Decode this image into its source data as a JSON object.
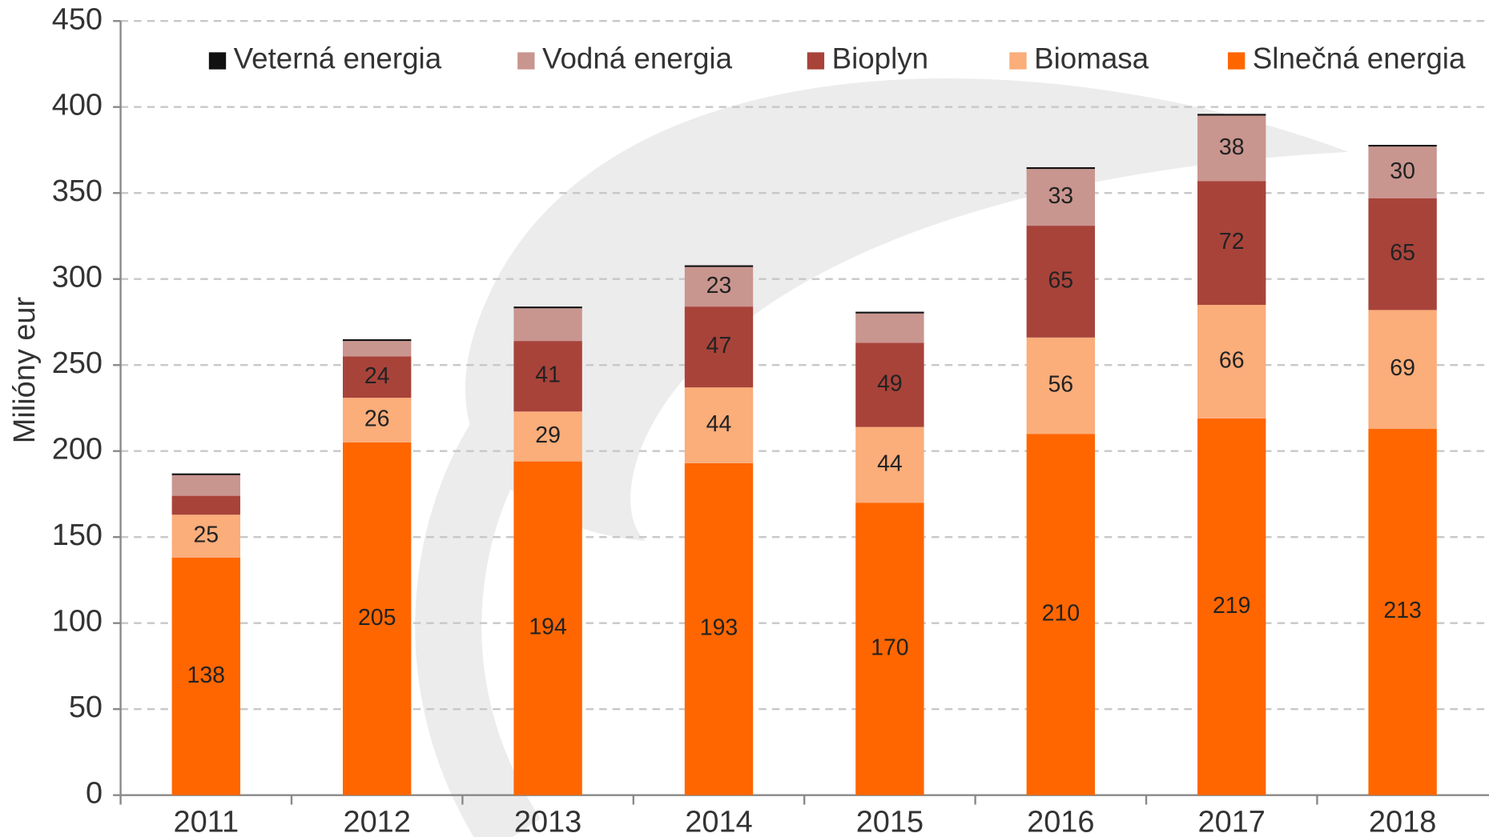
{
  "chart_data": {
    "type": "stacked_bar",
    "y_label": "Milióny eur",
    "categories": [
      "2011",
      "2012",
      "2013",
      "2014",
      "2015",
      "2016",
      "2017",
      "2018"
    ],
    "series": [
      {
        "name": "Slnečná energia",
        "color": "#ff6600",
        "values": [
          138,
          205,
          194,
          193,
          170,
          210,
          219,
          213
        ]
      },
      {
        "name": "Biomasa",
        "color": "#fbad7a",
        "values": [
          25,
          26,
          29,
          44,
          44,
          56,
          66,
          69
        ]
      },
      {
        "name": "Bioplyn",
        "color": "#a8433a",
        "values": [
          11,
          24,
          41,
          47,
          49,
          65,
          72,
          65
        ]
      },
      {
        "name": "Vodná energia",
        "color": "#c9958f",
        "values": [
          12,
          9,
          19,
          23,
          17,
          33,
          38,
          30
        ]
      },
      {
        "name": "Veterná energia",
        "color": "#111111",
        "values": [
          1,
          1,
          1,
          1,
          1,
          1,
          1,
          1
        ]
      }
    ],
    "ylim": [
      0,
      450
    ],
    "yticks": [
      0,
      50,
      100,
      150,
      200,
      250,
      300,
      350,
      400,
      450
    ],
    "grid": true,
    "legend": "top"
  }
}
